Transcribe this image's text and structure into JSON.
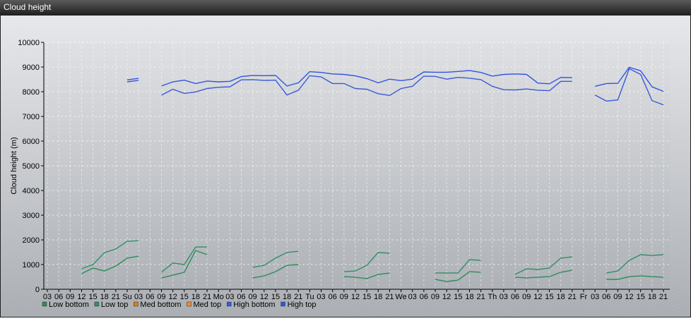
{
  "chart_data": {
    "type": "line",
    "title": "Cloud height",
    "y_label": "Cloud height (m)",
    "categories": [
      "03",
      "06",
      "09",
      "12",
      "15",
      "18",
      "21",
      "Su",
      "03",
      "06",
      "09",
      "12",
      "15",
      "18",
      "21",
      "Mo",
      "03",
      "06",
      "09",
      "12",
      "15",
      "18",
      "21",
      "Tu",
      "03",
      "06",
      "09",
      "12",
      "15",
      "18",
      "21",
      "We",
      "03",
      "06",
      "09",
      "12",
      "15",
      "18",
      "21",
      "Th",
      "03",
      "06",
      "09",
      "12",
      "15",
      "18",
      "21",
      "Fr",
      "03",
      "06",
      "09",
      "12",
      "15",
      "18",
      "21"
    ],
    "ylim": [
      0,
      10000
    ],
    "yticks": [
      0,
      1000,
      2000,
      3000,
      4000,
      5000,
      6000,
      7000,
      8000,
      9000,
      10000
    ],
    "grid": true,
    "series": [
      {
        "name": "Low bottom",
        "color": "#2e8b57",
        "values": [
          null,
          null,
          null,
          630,
          860,
          740,
          940,
          1260,
          1340,
          null,
          460,
          570,
          690,
          1570,
          1400,
          null,
          null,
          null,
          460,
          540,
          710,
          970,
          1000,
          null,
          null,
          null,
          510,
          490,
          430,
          600,
          660,
          null,
          null,
          null,
          400,
          310,
          370,
          710,
          690,
          null,
          null,
          490,
          460,
          490,
          510,
          690,
          770,
          null,
          null,
          400,
          400,
          510,
          540,
          510,
          490
        ]
      },
      {
        "name": "Low top",
        "color": "#2f8f63",
        "values": [
          null,
          null,
          null,
          830,
          1000,
          1480,
          1630,
          1940,
          1970,
          null,
          690,
          1060,
          1000,
          1710,
          1710,
          null,
          null,
          null,
          890,
          970,
          1260,
          1490,
          1540,
          null,
          null,
          null,
          710,
          740,
          970,
          1490,
          1460,
          null,
          null,
          null,
          660,
          660,
          660,
          1200,
          1170,
          null,
          null,
          600,
          830,
          800,
          860,
          1260,
          1310,
          null,
          null,
          660,
          740,
          1170,
          1400,
          1370,
          1400
        ]
      },
      {
        "name": "Med bottom",
        "color": "#e07b1a",
        "values": [
          null,
          null,
          null,
          null,
          null,
          null,
          null,
          null,
          null,
          null,
          null,
          null,
          null,
          null,
          null,
          null,
          null,
          null,
          null,
          null,
          null,
          null,
          null,
          null,
          null,
          null,
          null,
          null,
          null,
          null,
          null,
          null,
          null,
          null,
          null,
          null,
          null,
          null,
          null,
          null,
          null,
          null,
          null,
          null,
          null,
          null,
          null,
          null,
          null,
          null,
          null,
          null,
          null,
          null,
          null
        ]
      },
      {
        "name": "Med top",
        "color": "#f08c28",
        "values": [
          null,
          null,
          null,
          null,
          null,
          null,
          null,
          null,
          null,
          null,
          null,
          null,
          null,
          null,
          null,
          null,
          null,
          null,
          null,
          null,
          null,
          null,
          null,
          null,
          null,
          null,
          null,
          null,
          null,
          null,
          null,
          null,
          null,
          null,
          null,
          null,
          null,
          null,
          null,
          null,
          null,
          null,
          null,
          null,
          null,
          null,
          null,
          null,
          null,
          null,
          null,
          null,
          null,
          null,
          null
        ]
      },
      {
        "name": "High bottom",
        "color": "#3a5ad6",
        "values": [
          null,
          null,
          null,
          null,
          null,
          null,
          null,
          8400,
          8460,
          null,
          7860,
          8100,
          7930,
          7990,
          8130,
          8180,
          8200,
          8480,
          8490,
          8460,
          8470,
          7870,
          8060,
          8650,
          8600,
          8330,
          8330,
          8130,
          8100,
          7920,
          7850,
          8130,
          8220,
          8630,
          8620,
          8510,
          8580,
          8550,
          8490,
          8220,
          8080,
          8070,
          8110,
          8060,
          8040,
          8420,
          8420,
          null,
          7870,
          7620,
          7670,
          8930,
          8700,
          7640,
          7470
        ]
      },
      {
        "name": "High top",
        "color": "#2f55e0",
        "values": [
          null,
          null,
          null,
          null,
          null,
          null,
          null,
          8480,
          8540,
          null,
          8230,
          8400,
          8470,
          8330,
          8430,
          8400,
          8420,
          8610,
          8660,
          8650,
          8660,
          8230,
          8360,
          8810,
          8780,
          8720,
          8700,
          8640,
          8530,
          8360,
          8510,
          8450,
          8510,
          8800,
          8790,
          8790,
          8820,
          8860,
          8780,
          8630,
          8700,
          8720,
          8700,
          8350,
          8320,
          8580,
          8570,
          null,
          8220,
          8330,
          8340,
          8990,
          8850,
          8200,
          8010
        ]
      }
    ]
  }
}
